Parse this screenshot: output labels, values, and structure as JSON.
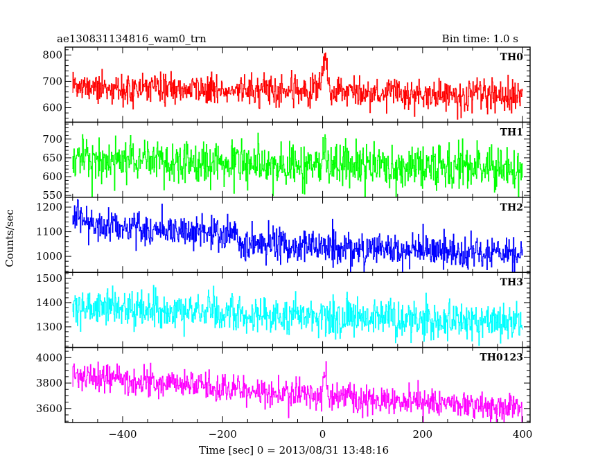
{
  "chart_data": {
    "type": "line",
    "title": "ae130831134816_wam0_trn",
    "bin_time_label": "Bin time: 1.0 s",
    "xlabel": "Time [sec] 0 = 2013/08/31 13:48:16",
    "ylabel": "Counts/sec",
    "xlim": [
      -515,
      415
    ],
    "x_ticks": [
      -400,
      -200,
      0,
      200,
      400
    ],
    "x_tick_labels": [
      "−400",
      "−200",
      "0",
      "200",
      "400"
    ],
    "x_minor_step": 50,
    "x_range": [
      -500,
      400
    ],
    "bin_sec": 1.0,
    "panels": [
      {
        "name": "TH0",
        "color": "#ff0000",
        "ylim": [
          545,
          830
        ],
        "y_ticks": [
          600,
          700,
          800
        ],
        "y_tick_labels": [
          "600",
          "700",
          "800"
        ],
        "y_minor_step": 20,
        "level": [
          [
            -500,
            678
          ],
          [
            -350,
            672
          ],
          [
            -100,
            668
          ],
          [
            0,
            660
          ],
          [
            400,
            648
          ]
        ],
        "noise_sd": 30,
        "features": [
          {
            "t": 5,
            "height": 150,
            "width": 4
          },
          {
            "t": -15,
            "height": 15,
            "width": 3
          }
        ]
      },
      {
        "name": "TH1",
        "color": "#00ff00",
        "ylim": [
          545,
          745
        ],
        "y_ticks": [
          550,
          600,
          650,
          700
        ],
        "y_tick_labels": [
          "550",
          "600",
          "650",
          "700"
        ],
        "y_minor_step": 10,
        "level": [
          [
            -500,
            648
          ],
          [
            -300,
            640
          ],
          [
            -100,
            630
          ],
          [
            0,
            630
          ],
          [
            400,
            622
          ]
        ],
        "noise_sd": 28,
        "features": [
          {
            "t": 5,
            "height": 40,
            "width": 4
          }
        ]
      },
      {
        "name": "TH2",
        "color": "#0000ff",
        "ylim": [
          935,
          1240
        ],
        "y_ticks": [
          1000,
          1100,
          1200
        ],
        "y_tick_labels": [
          "1000",
          "1100",
          "1200"
        ],
        "y_minor_step": 20,
        "level": [
          [
            -500,
            1150
          ],
          [
            -400,
            1120
          ],
          [
            -170,
            1085
          ],
          [
            -165,
            1050
          ],
          [
            0,
            1040
          ],
          [
            200,
            1020
          ],
          [
            400,
            1000
          ]
        ],
        "noise_sd": 35,
        "features": []
      },
      {
        "name": "TH3",
        "color": "#00ffff",
        "ylim": [
          1215,
          1525
        ],
        "y_ticks": [
          1300,
          1400,
          1500
        ],
        "y_tick_labels": [
          "1300",
          "1400",
          "1500"
        ],
        "y_minor_step": 20,
        "level": [
          [
            -500,
            1385
          ],
          [
            -400,
            1375
          ],
          [
            -200,
            1355
          ],
          [
            0,
            1340
          ],
          [
            400,
            1320
          ]
        ],
        "noise_sd": 38,
        "features": []
      },
      {
        "name": "TH0123",
        "color": "#ff00ff",
        "ylim": [
          3490,
          4080
        ],
        "y_ticks": [
          3600,
          3800,
          4000
        ],
        "y_tick_labels": [
          "3600",
          "3800",
          "4000"
        ],
        "y_minor_step": 50,
        "level": [
          [
            -500,
            3860
          ],
          [
            -400,
            3830
          ],
          [
            -200,
            3760
          ],
          [
            0,
            3700
          ],
          [
            200,
            3640
          ],
          [
            400,
            3600
          ]
        ],
        "noise_sd": 55,
        "features": [
          {
            "t": 5,
            "height": 150,
            "width": 4
          }
        ]
      }
    ]
  }
}
